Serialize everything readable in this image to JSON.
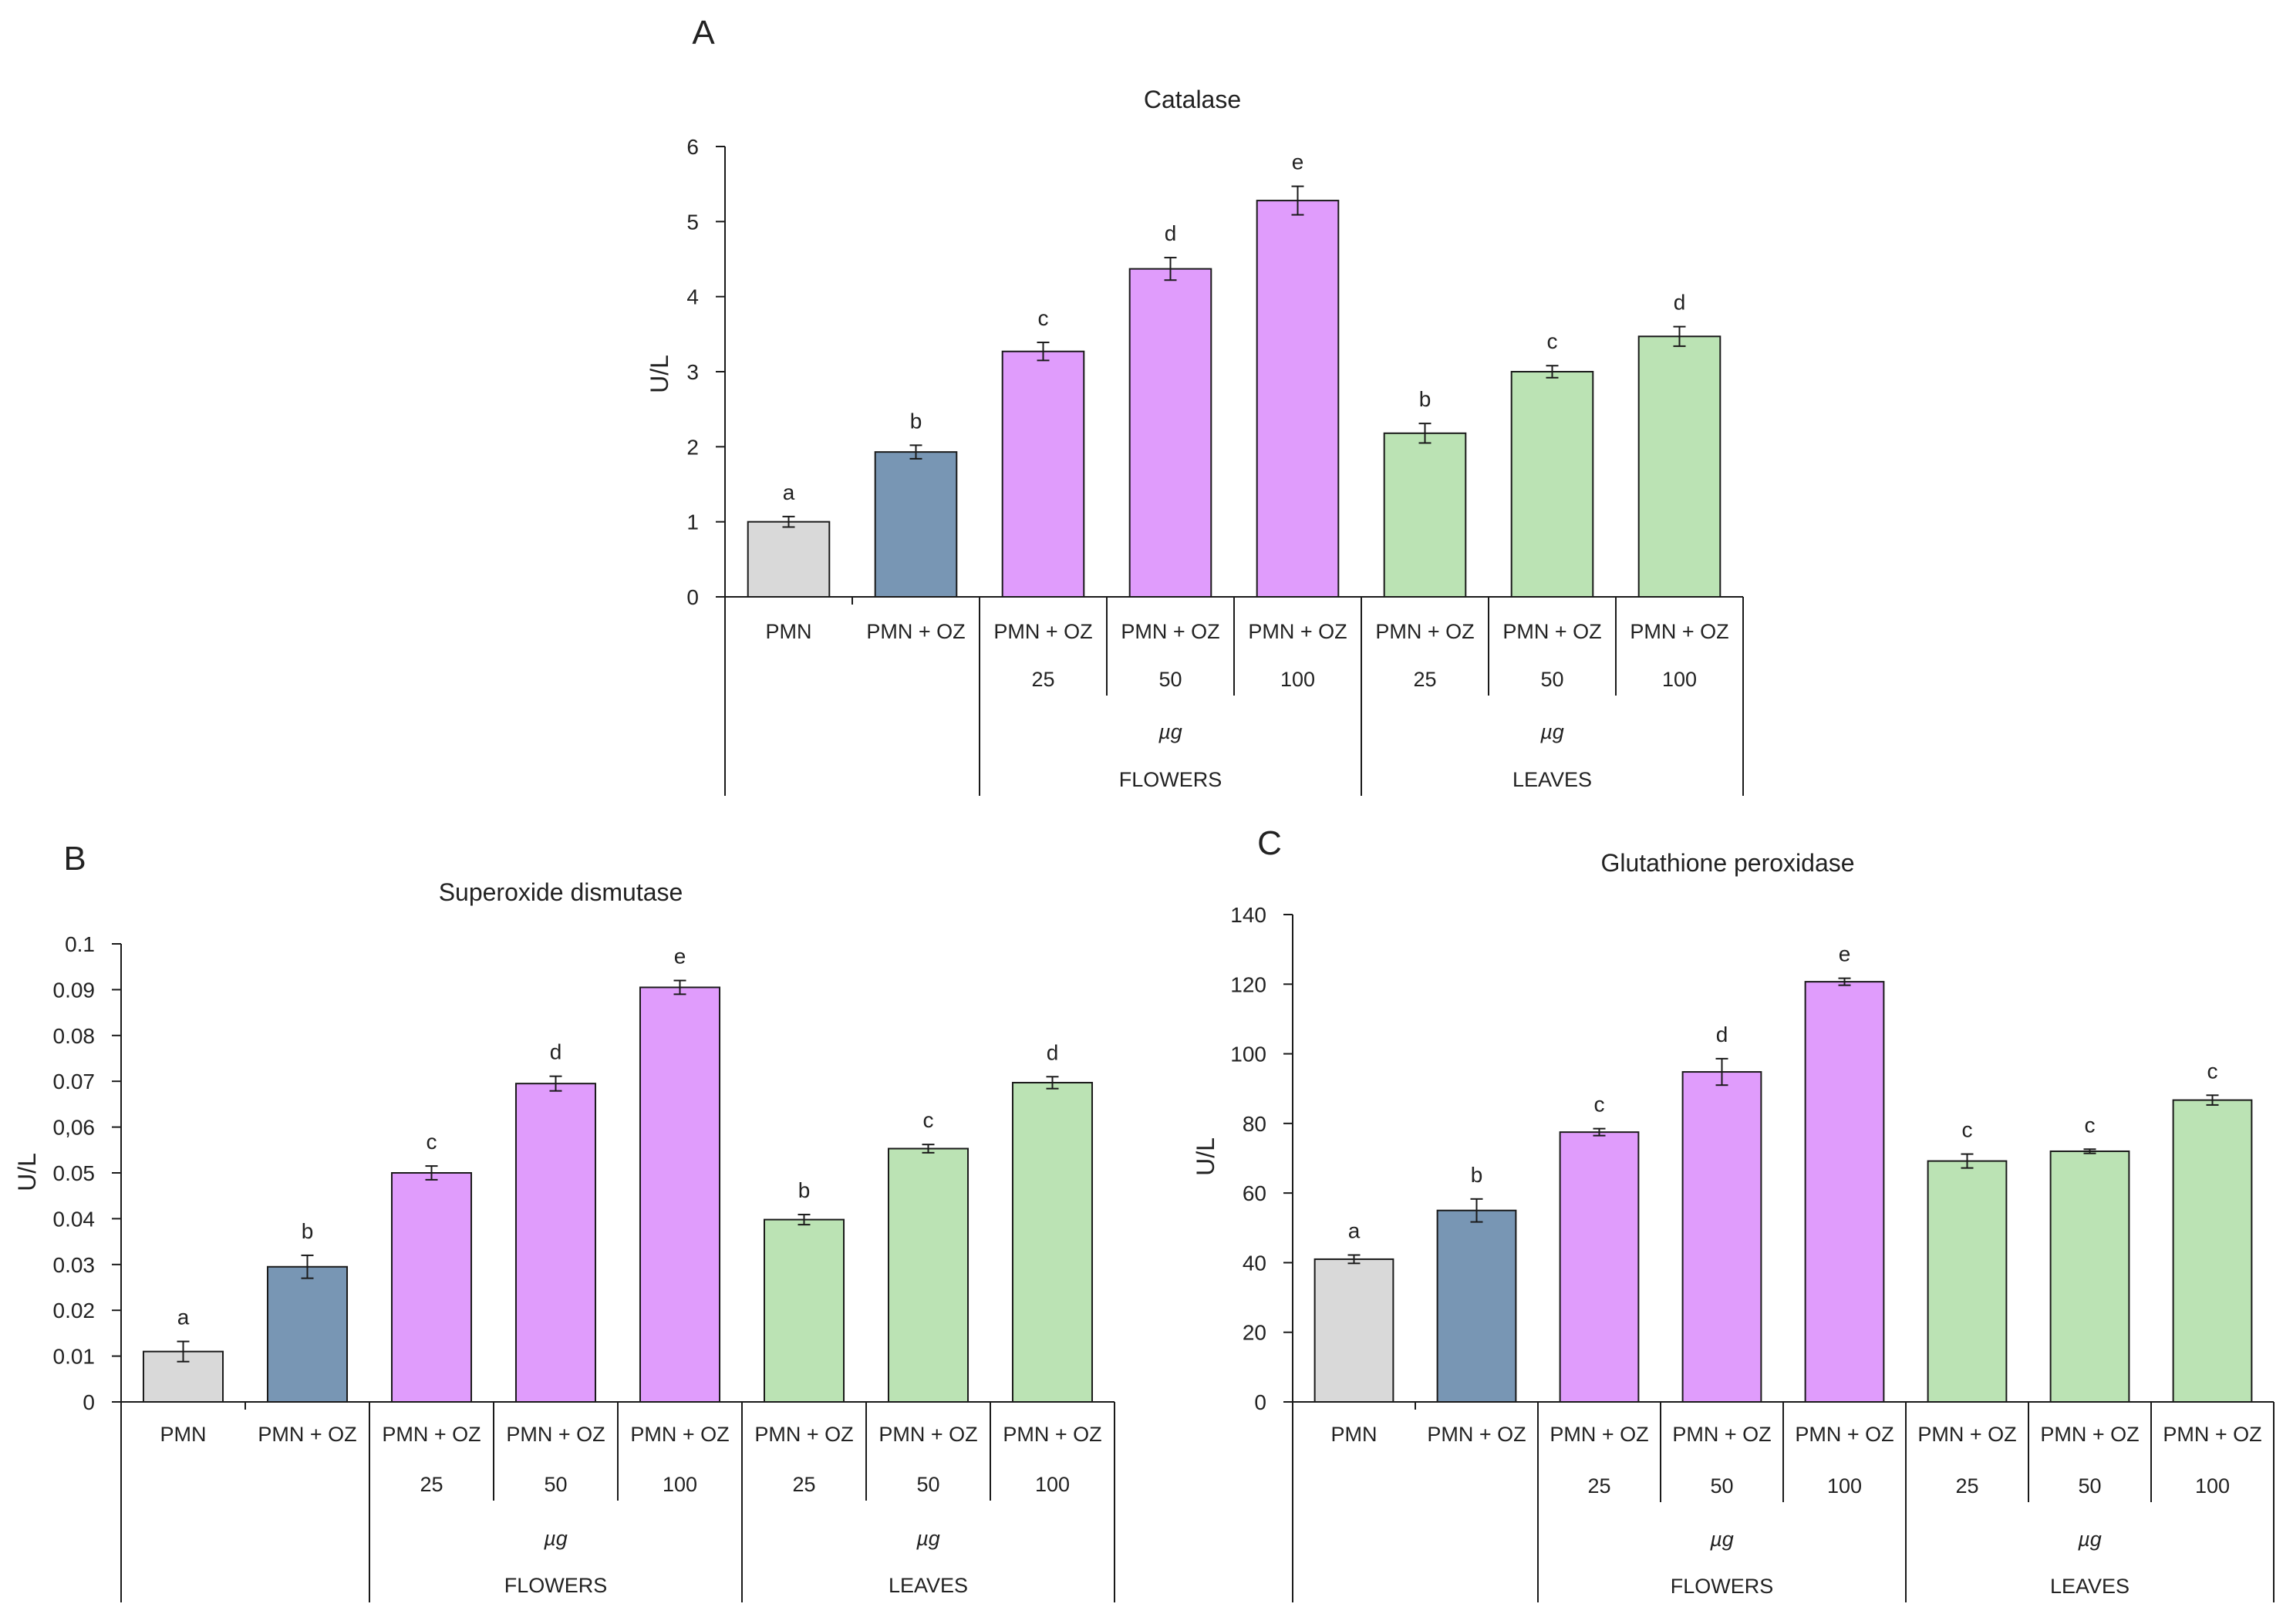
{
  "chart_data": [
    {
      "panel": "A",
      "type": "bar",
      "title": "Catalase",
      "ylabel": "U/L",
      "xlabel": "",
      "ylim": [
        0,
        6
      ],
      "yticks": [
        "0",
        "1",
        "2",
        "3",
        "4",
        "5",
        "6"
      ],
      "grid": false,
      "categories": [
        "PMN",
        "PMN + OZ",
        "PMN + OZ",
        "PMN + OZ",
        "PMN + OZ",
        "PMN + OZ",
        "PMN + OZ",
        "PMN + OZ"
      ],
      "doses": [
        "",
        "",
        "25",
        "50",
        "100",
        "25",
        "50",
        "100"
      ],
      "groups": [
        {
          "unit": "µg",
          "name": "FLOWERS"
        },
        {
          "unit": "µg",
          "name": "LEAVES"
        }
      ],
      "values": [
        1.0,
        1.93,
        3.27,
        4.37,
        5.28,
        2.18,
        3.0,
        3.47
      ],
      "errors": [
        0.07,
        0.09,
        0.12,
        0.15,
        0.19,
        0.13,
        0.08,
        0.13
      ],
      "significance": [
        "a",
        "b",
        "c",
        "d",
        "e",
        "b",
        "c",
        "d"
      ]
    },
    {
      "panel": "B",
      "type": "bar",
      "title": "Superoxide dismutase",
      "ylabel": "U/L",
      "xlabel": "",
      "ylim": [
        0,
        0.1
      ],
      "yticks": [
        "0",
        "0.01",
        "0.02",
        "0.03",
        "0.04",
        "0.05",
        "0,06",
        "0.07",
        "0.08",
        "0.09",
        "0.1"
      ],
      "grid": false,
      "categories": [
        "PMN",
        "PMN + OZ",
        "PMN + OZ",
        "PMN + OZ",
        "PMN + OZ",
        "PMN + OZ",
        "PMN + OZ",
        "PMN + OZ"
      ],
      "doses": [
        "",
        "",
        "25",
        "50",
        "100",
        "25",
        "50",
        "100"
      ],
      "groups": [
        {
          "unit": "µg",
          "name": "FLOWERS"
        },
        {
          "unit": "µg",
          "name": "LEAVES"
        }
      ],
      "values": [
        0.011,
        0.0295,
        0.05,
        0.0695,
        0.0905,
        0.0398,
        0.0553,
        0.0697
      ],
      "errors": [
        0.0022,
        0.0025,
        0.0015,
        0.0016,
        0.0015,
        0.0011,
        0.0009,
        0.0013
      ],
      "significance": [
        "a",
        "b",
        "c",
        "d",
        "e",
        "b",
        "c",
        "d"
      ]
    },
    {
      "panel": "C",
      "type": "bar",
      "title": "Glutathione peroxidase",
      "ylabel": "U/L",
      "xlabel": "",
      "ylim": [
        0,
        140
      ],
      "yticks": [
        "0",
        "20",
        "40",
        "60",
        "80",
        "100",
        "120",
        "140"
      ],
      "grid": false,
      "categories": [
        "PMN",
        "PMN + OZ",
        "PMN + OZ",
        "PMN + OZ",
        "PMN + OZ",
        "PMN + OZ",
        "PMN + OZ",
        "PMN + OZ"
      ],
      "doses": [
        "",
        "",
        "25",
        "50",
        "100",
        "25",
        "50",
        "100"
      ],
      "groups": [
        {
          "unit": "µg",
          "name": "FLOWERS"
        },
        {
          "unit": "µg",
          "name": "LEAVES"
        }
      ],
      "values": [
        41,
        55,
        77.5,
        94.8,
        120.7,
        69.2,
        72,
        86.7
      ],
      "errors": [
        1.2,
        3.3,
        1.0,
        3.8,
        1.0,
        2.0,
        0.6,
        1.4
      ],
      "significance": [
        "a",
        "b",
        "c",
        "d",
        "e",
        "c",
        "c",
        "c"
      ]
    }
  ],
  "colors": {
    "control": "#d9d9d9",
    "positive": "#7896b4",
    "flowers": "#e09cfc",
    "leaves": "#bbe3b4",
    "outline": "#1a1a1a"
  },
  "bar_color_keys": [
    "control",
    "positive",
    "flowers",
    "flowers",
    "flowers",
    "leaves",
    "leaves",
    "leaves"
  ]
}
